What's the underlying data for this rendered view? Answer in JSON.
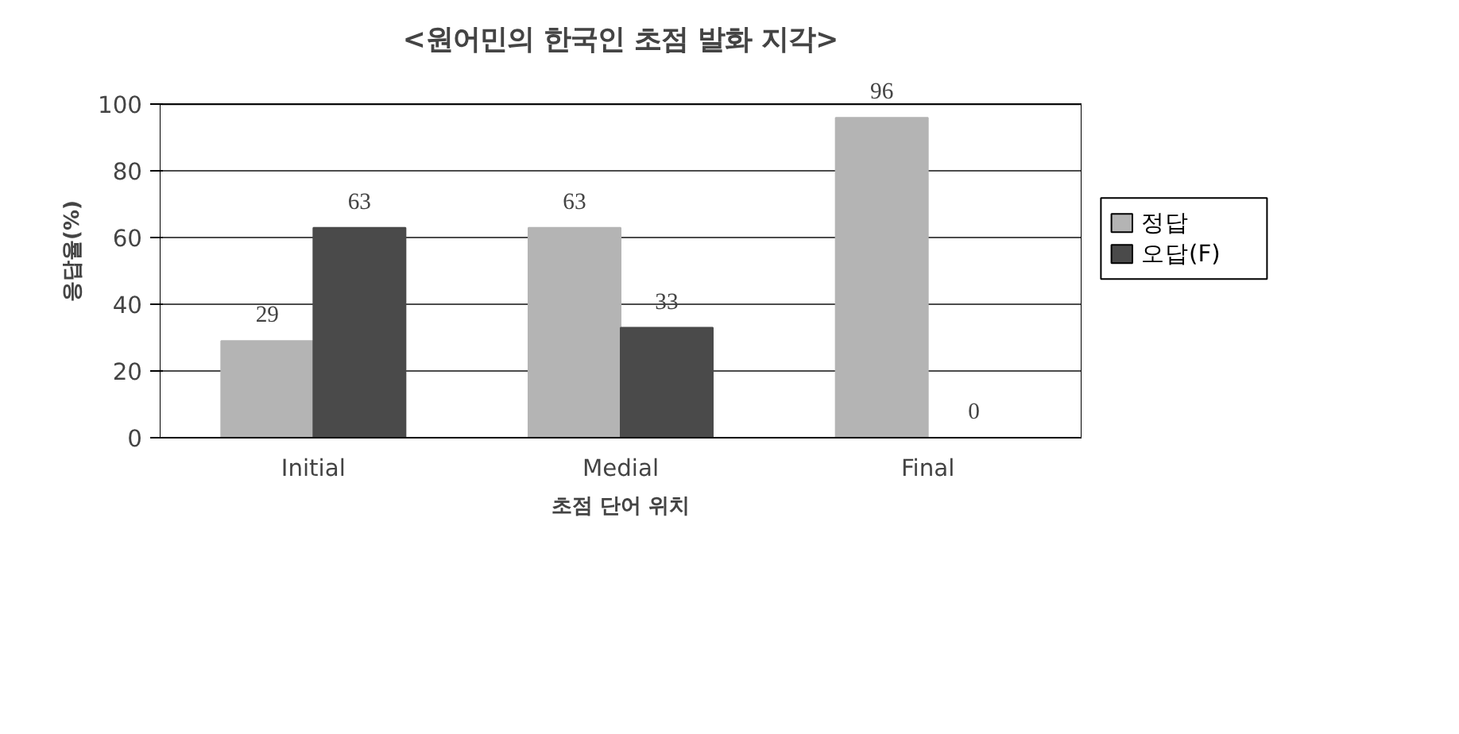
{
  "chart_data": {
    "type": "bar",
    "title": "<원어민의 한국인 초점 발화 지각>",
    "xlabel": "초점 단어 위치",
    "ylabel": "응답율(%)",
    "categories": [
      "Initial",
      "Medial",
      "Final"
    ],
    "series": [
      {
        "name": "정답",
        "color": "#b4b4b4",
        "values": [
          29,
          63,
          96
        ]
      },
      {
        "name": "오답(F)",
        "color": "#4a4a4a",
        "values": [
          63,
          33,
          0
        ]
      }
    ],
    "ylim": [
      0,
      100
    ],
    "yticks": [
      0,
      20,
      40,
      60,
      80,
      100
    ],
    "grid": "y",
    "legend": "right",
    "data_labels": true
  }
}
